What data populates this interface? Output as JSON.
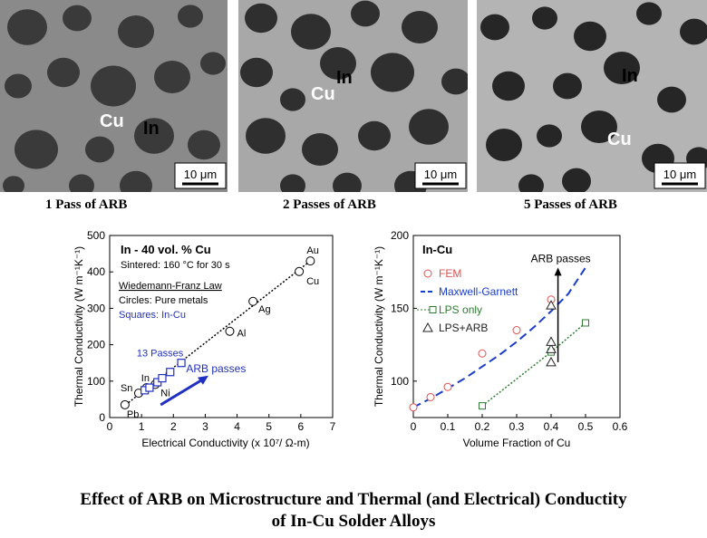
{
  "micrographs": [
    {
      "caption": "1 Pass of ARB",
      "label_a": "Cu",
      "label_b": "In",
      "scalebar": "10 μm",
      "bg": "#8a8a8a",
      "particle": "#3a3a3a"
    },
    {
      "caption": "2 Passes of ARB",
      "label_a": "Cu",
      "label_b": "In",
      "scalebar": "10 μm",
      "bg": "#a8a8a8",
      "particle": "#2f2f2f"
    },
    {
      "caption": "5 Passes of ARB",
      "label_a": "Cu",
      "label_b": "In",
      "scalebar": "10 μm",
      "bg": "#b4b4b4",
      "particle": "#262626"
    }
  ],
  "chart_data": [
    {
      "type": "scatter",
      "xlabel": "Electrical Conductivity (x 10⁷/ Ω-m)",
      "ylabel": "Thermal Conductivity (W m⁻¹K⁻¹)",
      "xlim": [
        0,
        7
      ],
      "ylim": [
        0,
        500
      ],
      "xticks": [
        0,
        1,
        2,
        3,
        4,
        5,
        6,
        7
      ],
      "yticks": [
        0,
        100,
        200,
        300,
        400,
        500
      ],
      "legend_box": {
        "title": "In - 40 vol. % Cu",
        "sinter": "Sintered: 160 °C for 30 s",
        "law": "Wiedemann-Franz Law",
        "circles": "Circles: Pure metals",
        "squares": "Squares: In-Cu"
      },
      "annotations": {
        "passes": "13 Passes",
        "arrow": "ARB passes"
      },
      "series": [
        {
          "kind": "pure_metals",
          "marker": "circle",
          "points": [
            {
              "label": "Pb",
              "x": 0.48,
              "y": 35
            },
            {
              "label": "Sn",
              "x": 0.91,
              "y": 67
            },
            {
              "label": "In",
              "x": 1.16,
              "y": 82
            },
            {
              "label": "Ni",
              "x": 1.43,
              "y": 91
            },
            {
              "label": "Al",
              "x": 3.77,
              "y": 237
            },
            {
              "label": "Ag",
              "x": 4.5,
              "y": 319
            },
            {
              "label": "Au",
              "x": 6.3,
              "y": 430
            },
            {
              "label": "Cu",
              "x": 5.95,
              "y": 401
            }
          ]
        },
        {
          "kind": "in_cu",
          "marker": "square",
          "points": [
            {
              "x": 1.1,
              "y": 75
            },
            {
              "x": 1.25,
              "y": 82
            },
            {
              "x": 1.5,
              "y": 97
            },
            {
              "x": 1.65,
              "y": 108
            },
            {
              "x": 1.9,
              "y": 125
            },
            {
              "x": 2.25,
              "y": 150
            }
          ]
        }
      ],
      "wf_line": {
        "x": [
          0.5,
          6.3
        ],
        "y": [
          35,
          430
        ]
      },
      "arb_arrow": {
        "from": [
          1.6,
          35
        ],
        "to": [
          3.1,
          115
        ]
      }
    },
    {
      "type": "scatter",
      "xlabel": "Volume Fraction of Cu",
      "ylabel": "Thermal Conductivity (W m⁻¹K⁻¹)",
      "xlim": [
        0,
        0.6
      ],
      "ylim": [
        75,
        200
      ],
      "xticks": [
        0,
        0.1,
        0.2,
        0.3,
        0.4,
        0.5,
        0.6
      ],
      "yticks": [
        100,
        150,
        200
      ],
      "title": "In-Cu",
      "annotation": "ARB passes",
      "colors": {
        "fem": "#e05050",
        "mg": "#1a3ccc",
        "lps": "#2e7d32",
        "arb": "#222222"
      },
      "series": [
        {
          "name": "FEM",
          "marker": "circle",
          "x": [
            0,
            0.05,
            0.1,
            0.2,
            0.3,
            0.4
          ],
          "y": [
            82,
            89,
            96,
            119,
            135,
            156
          ]
        },
        {
          "name": "Maxwell-Garnett",
          "style": "dashed",
          "x": [
            0,
            0.05,
            0.1,
            0.15,
            0.2,
            0.25,
            0.3,
            0.35,
            0.4,
            0.45,
            0.5
          ],
          "y": [
            82,
            88,
            95,
            102,
            110,
            118,
            127,
            137,
            148,
            160,
            178
          ]
        },
        {
          "name": "LPS only",
          "marker": "square",
          "style": "dotted",
          "x": [
            0.2,
            0.4,
            0.5
          ],
          "y": [
            83,
            120,
            140
          ]
        },
        {
          "name": "LPS+ARB",
          "marker": "triangle",
          "x": [
            0.4,
            0.4,
            0.4,
            0.4
          ],
          "y": [
            113,
            122,
            127,
            152
          ]
        }
      ],
      "arb_arrow": {
        "x": 0.42,
        "from": 113,
        "to": 178
      }
    }
  ],
  "figure_title_line1": "Effect of ARB on Microstructure and Thermal (and Electrical) Conductity",
  "figure_title_line2": "of In-Cu Solder Alloys"
}
